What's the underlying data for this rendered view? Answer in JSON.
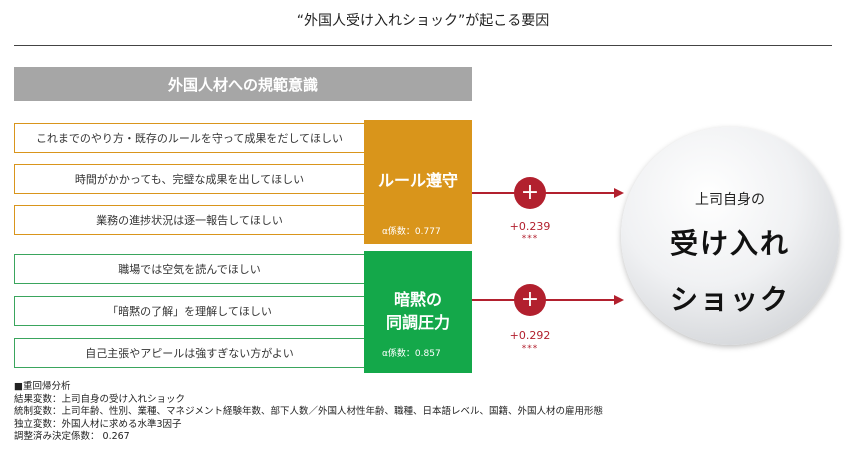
{
  "title": "“外国人受け入れショック”が起こる要因",
  "banner": "外国人材への規範意識",
  "group1": {
    "items": [
      "これまでのやり方・既存のルールを守って成果をだしてほしい",
      "時間がかかっても、完璧な成果を出してほしい",
      "業務の進捗状況は逐一報告してほしい"
    ],
    "label_line1": "ルール遵守",
    "alpha": "α係数：0.777",
    "color": "#d9951b"
  },
  "group2": {
    "items": [
      "職場では空気を読んでほしい",
      "「暗黙の了解」を理解してほしい",
      "自己主張やアピールは強すぎない方がよい"
    ],
    "label_line1": "暗黙の",
    "label_line2": "同調圧力",
    "alpha": "α係数：0.857",
    "color": "#14a84a"
  },
  "effect1": {
    "sign": "+",
    "coef": "+0.239",
    "sig": "***"
  },
  "effect2": {
    "sign": "+",
    "coef": "+0.292",
    "sig": "***"
  },
  "accent_color": "#b2202e",
  "outcome": {
    "sub": "上司自身の",
    "main_line1": "受け入れ",
    "main_line2": "ショック"
  },
  "notes": [
    "■重回帰分析",
    "結果変数：上司自身の受け入れショック",
    "統制変数：上司年齢、性別、業種、マネジメント経験年数、部下人数／外国人材性年齢、職種、日本語レベル、国籍、外国人材の雇用形態",
    "独立変数：外国人材に求める水準3因子",
    "調整済み決定係数： 0.267"
  ]
}
